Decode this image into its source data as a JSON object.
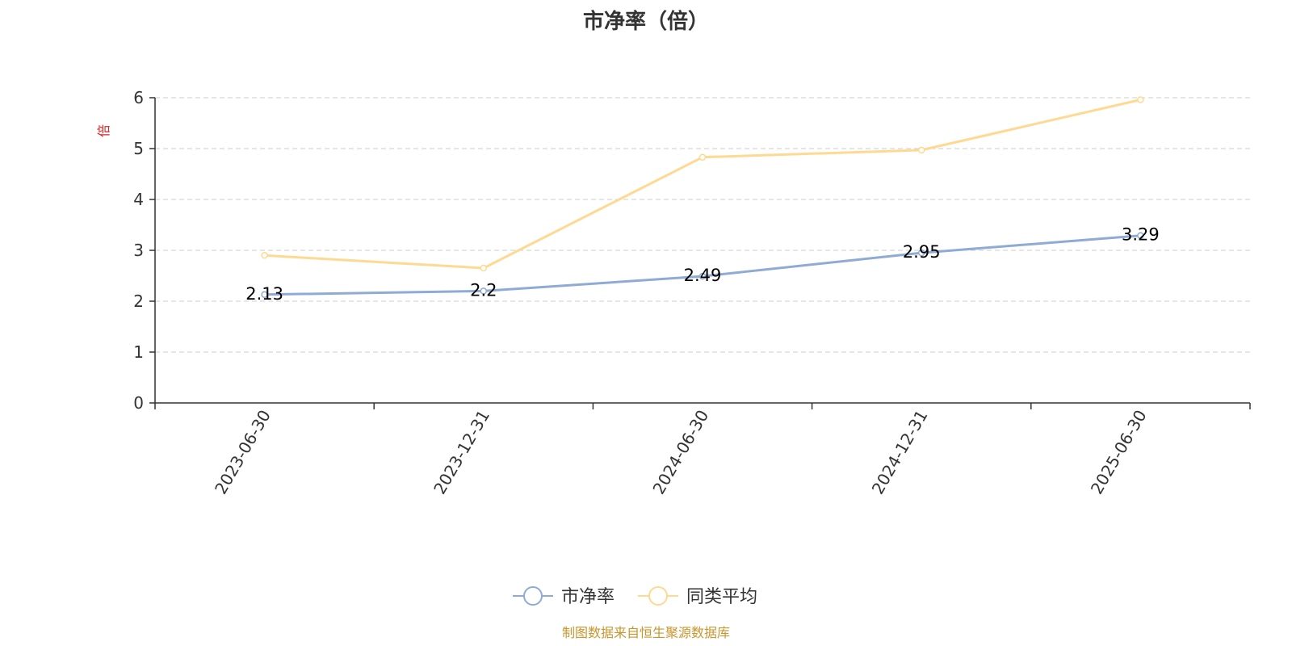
{
  "chart_data": {
    "type": "line",
    "title": "市净率（倍）",
    "ylabel": "倍",
    "categories": [
      "2023-06-30",
      "2023-12-31",
      "2024-06-30",
      "2024-12-31",
      "2025-06-30"
    ],
    "ylim": [
      0,
      6
    ],
    "yticks": [
      0,
      1,
      2,
      3,
      4,
      5,
      6
    ],
    "grid": true,
    "legend_position": "bottom-center",
    "series": [
      {
        "name": "市净率",
        "values": [
          2.13,
          2.2,
          2.49,
          2.95,
          3.29
        ],
        "color": "#8EABD6",
        "show_labels": true
      },
      {
        "name": "同类平均",
        "values": [
          2.9,
          2.65,
          4.83,
          4.97,
          5.96
        ],
        "color": "#FFD992",
        "show_labels": false
      }
    ]
  },
  "footer": {
    "source": "制图数据来自恒生聚源数据库",
    "source_color": "#C8962E"
  },
  "colors": {
    "axis": "#333333",
    "grid": "#CCCCCC",
    "ylabel": "#E02020"
  }
}
